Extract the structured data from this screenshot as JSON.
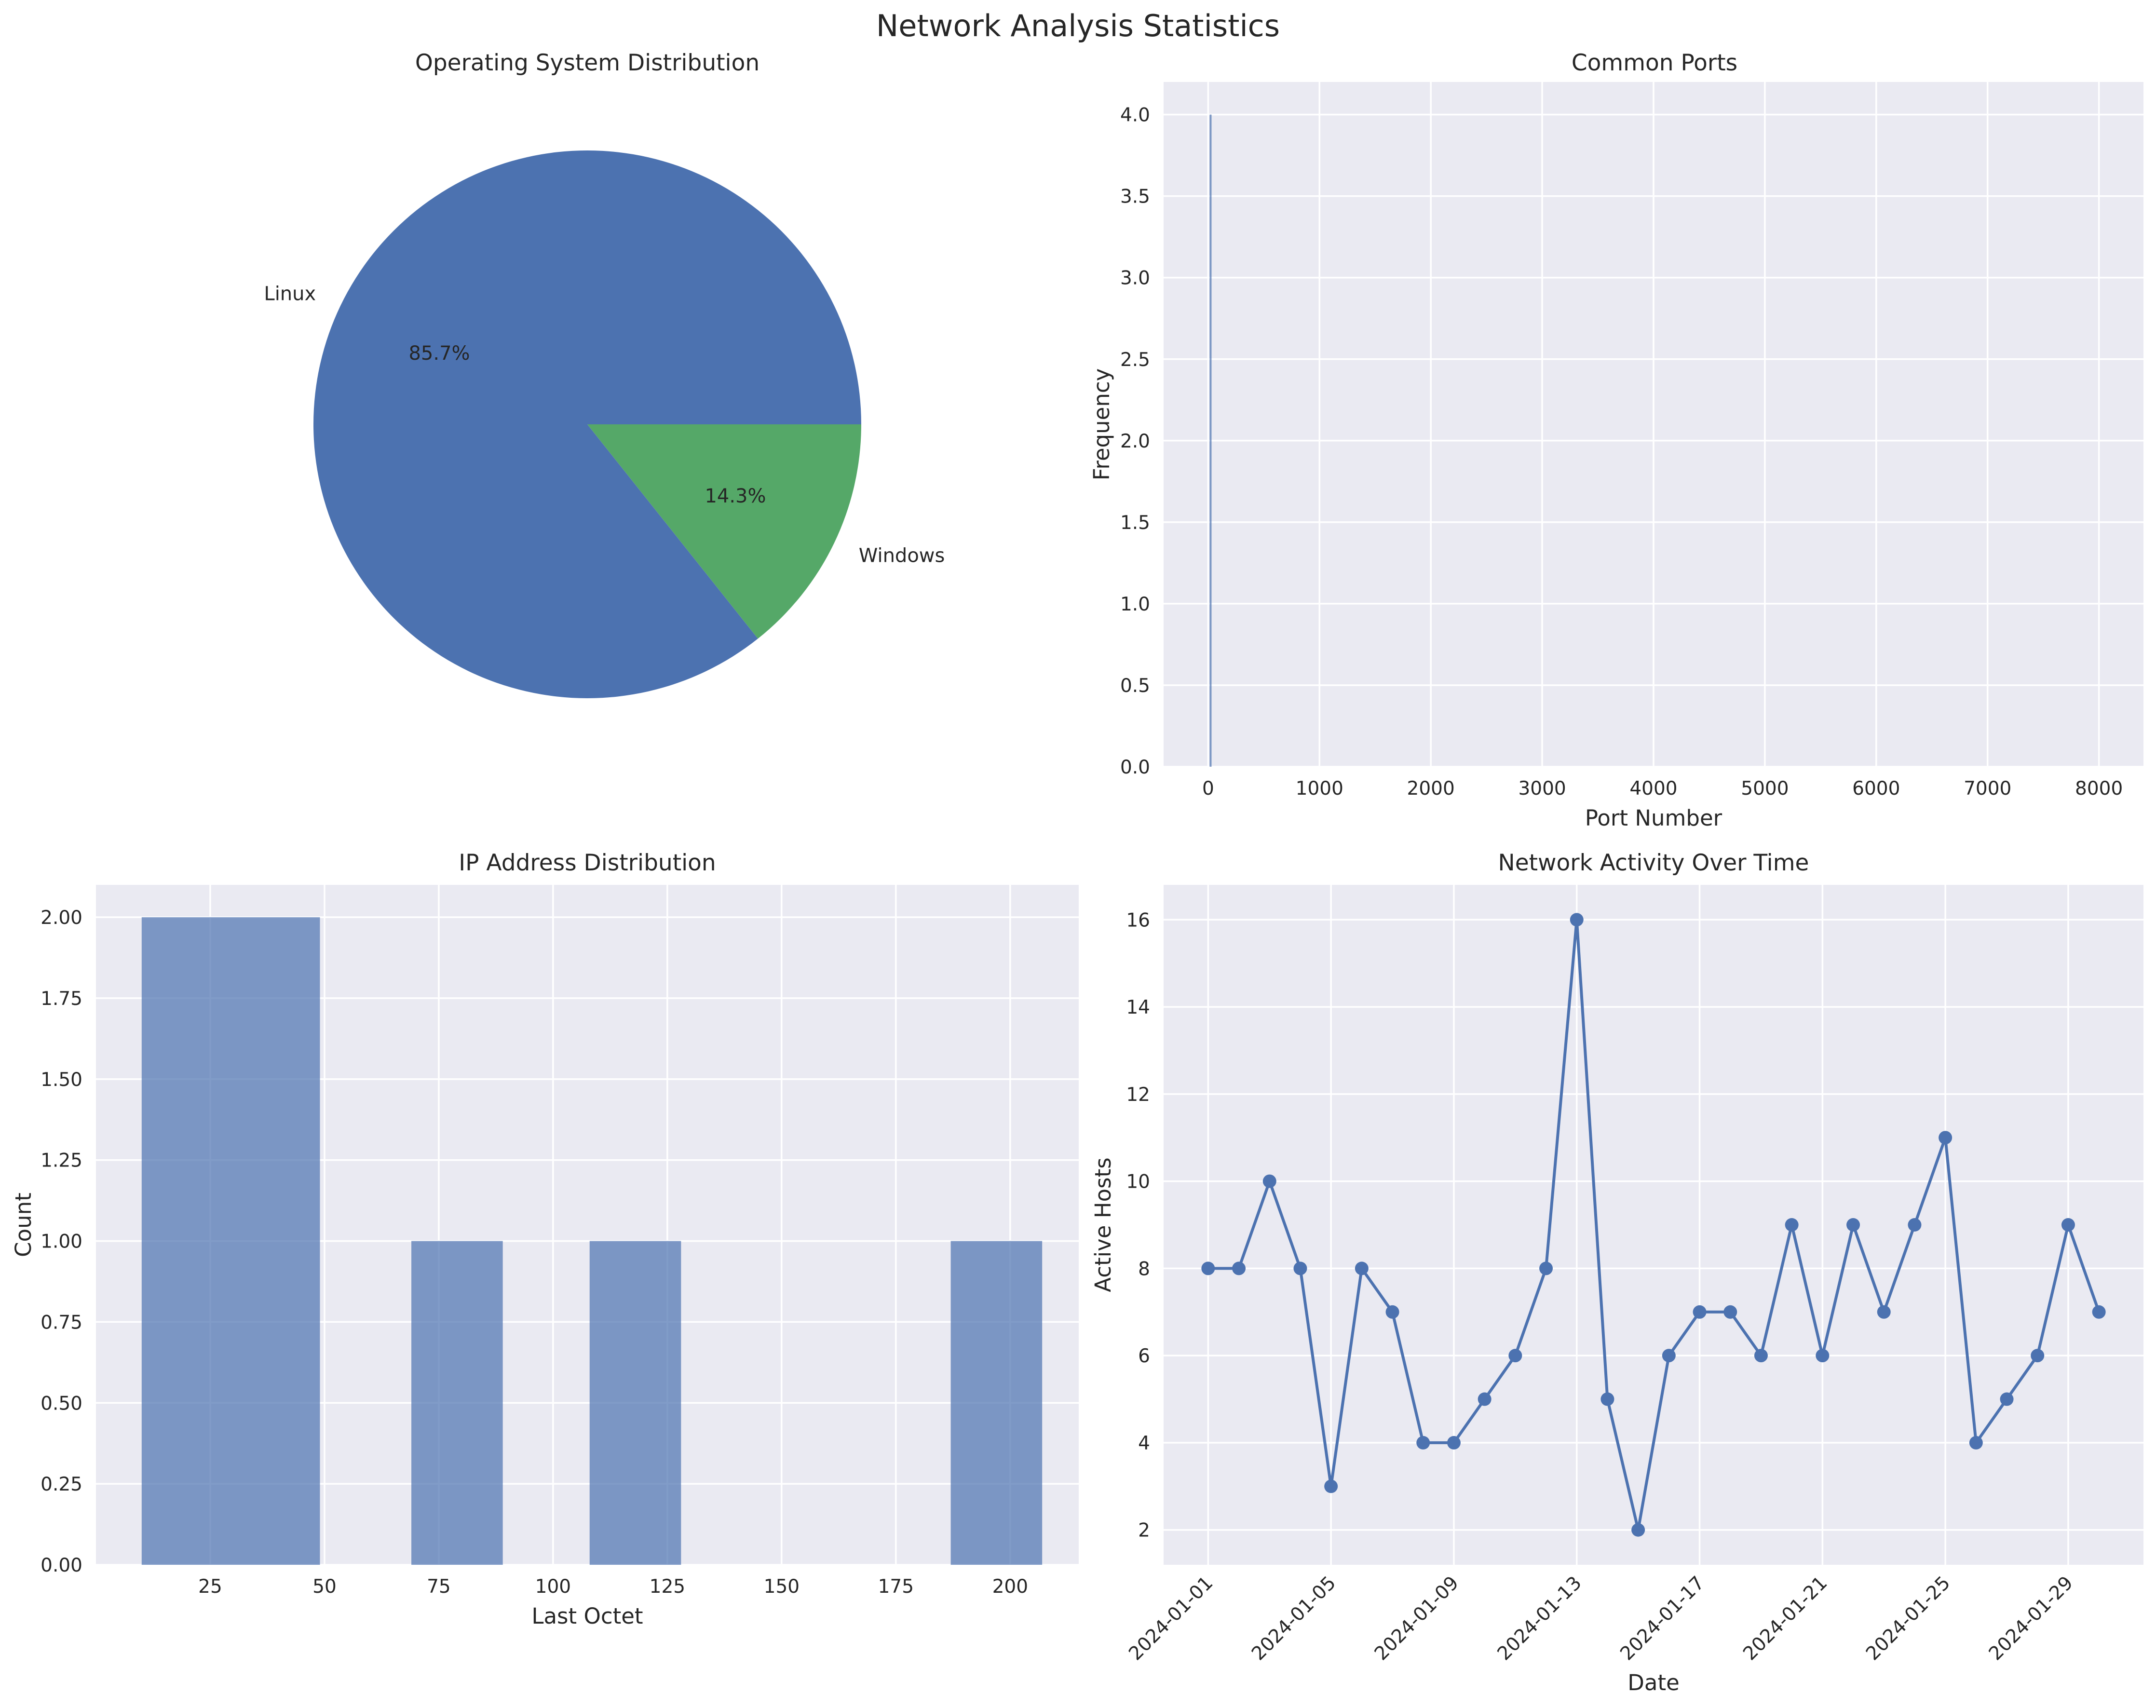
{
  "figure_title": "Network Analysis Statistics",
  "colors": {
    "blue": "#4c72b0",
    "green": "#55a868",
    "plot_bg": "#eaeaf2",
    "grid": "#ffffff"
  },
  "chart_data": [
    {
      "type": "pie",
      "title": "Operating System Distribution",
      "labels": [
        "Linux",
        "Windows"
      ],
      "values": [
        85.7,
        14.3
      ],
      "value_labels": [
        "85.7%",
        "14.3%"
      ],
      "colors": [
        "#4c72b0",
        "#55a868"
      ]
    },
    {
      "type": "bar",
      "title": "Common Ports",
      "xlabel": "Port Number",
      "ylabel": "Frequency",
      "xlim": [
        -400,
        8400
      ],
      "ylim": [
        0,
        4.2
      ],
      "xticks": [
        0,
        1000,
        2000,
        3000,
        4000,
        5000,
        6000,
        7000,
        8000
      ],
      "yticks": [
        0,
        0.5,
        1.0,
        1.5,
        2.0,
        2.5,
        3.0,
        3.5,
        4.0
      ],
      "xtick_labels": [
        "0",
        "1000",
        "2000",
        "3000",
        "4000",
        "5000",
        "6000",
        "7000",
        "8000"
      ],
      "ytick_labels": [
        "0.0",
        "0.5",
        "1.0",
        "1.5",
        "2.0",
        "2.5",
        "3.0",
        "3.5",
        "4.0"
      ],
      "bars": [
        {
          "port": 22,
          "frequency": 4
        }
      ]
    },
    {
      "type": "bar",
      "title": "IP Address Distribution",
      "xlabel": "Last Octet",
      "ylabel": "Count",
      "xlim": [
        0,
        215
      ],
      "ylim": [
        0,
        2.1
      ],
      "xticks": [
        25,
        50,
        75,
        100,
        125,
        150,
        175,
        200
      ],
      "yticks": [
        0,
        0.25,
        0.5,
        0.75,
        1.0,
        1.25,
        1.5,
        1.75,
        2.0
      ],
      "xtick_labels": [
        "25",
        "50",
        "75",
        "100",
        "125",
        "150",
        "175",
        "200"
      ],
      "ytick_labels": [
        "0.00",
        "0.25",
        "0.50",
        "0.75",
        "1.00",
        "1.25",
        "1.50",
        "1.75",
        "2.00"
      ],
      "bins": [
        {
          "start": 10,
          "end": 49,
          "count": 2
        },
        {
          "start": 69,
          "end": 89,
          "count": 1
        },
        {
          "start": 108,
          "end": 128,
          "count": 1
        },
        {
          "start": 187,
          "end": 207,
          "count": 1
        }
      ]
    },
    {
      "type": "line",
      "title": "Network Activity Over Time",
      "xlabel": "Date",
      "ylabel": "Active Hosts",
      "ylim": [
        1.2,
        16.8
      ],
      "yticks": [
        2,
        4,
        6,
        8,
        10,
        12,
        14,
        16
      ],
      "ytick_labels": [
        "2",
        "4",
        "6",
        "8",
        "10",
        "12",
        "14",
        "16"
      ],
      "xtick_labels": [
        "2024-01-01",
        "2024-01-05",
        "2024-01-09",
        "2024-01-13",
        "2024-01-17",
        "2024-01-21",
        "2024-01-25",
        "2024-01-29"
      ],
      "x": [
        "2024-01-01",
        "2024-01-02",
        "2024-01-03",
        "2024-01-04",
        "2024-01-05",
        "2024-01-06",
        "2024-01-07",
        "2024-01-08",
        "2024-01-09",
        "2024-01-10",
        "2024-01-11",
        "2024-01-12",
        "2024-01-13",
        "2024-01-14",
        "2024-01-15",
        "2024-01-16",
        "2024-01-17",
        "2024-01-18",
        "2024-01-19",
        "2024-01-20",
        "2024-01-21",
        "2024-01-22",
        "2024-01-23",
        "2024-01-24",
        "2024-01-25",
        "2024-01-26",
        "2024-01-27",
        "2024-01-28",
        "2024-01-29",
        "2024-01-30"
      ],
      "y": [
        8,
        8,
        10,
        8,
        3,
        8,
        7,
        4,
        4,
        5,
        6,
        8,
        16,
        5,
        2,
        6,
        7,
        7,
        6,
        9,
        6,
        9,
        7,
        9,
        11,
        4,
        5,
        6,
        9,
        7
      ]
    }
  ]
}
